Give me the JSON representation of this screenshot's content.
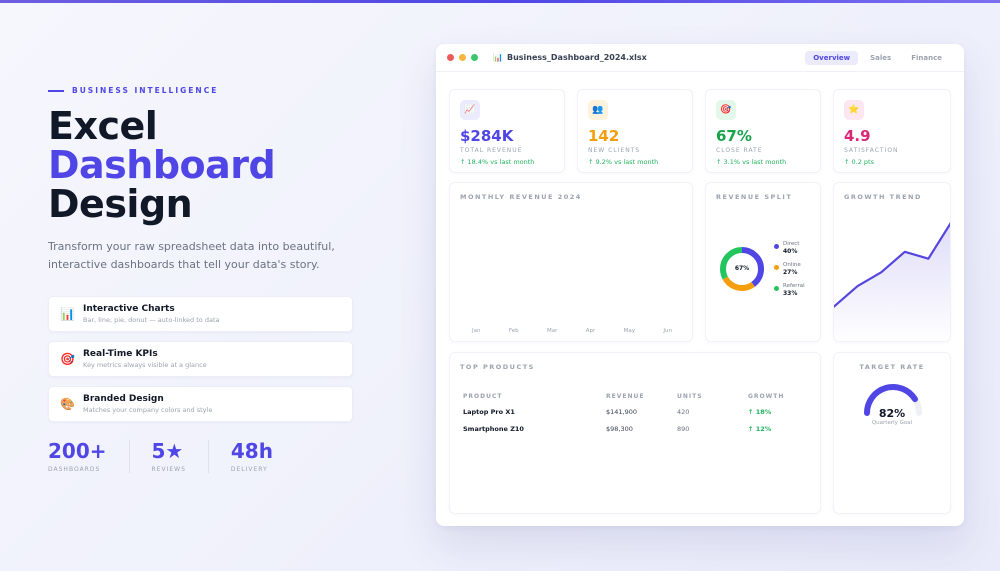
{
  "hero": {
    "eyebrow": "BUSINESS INTELLIGENCE",
    "title_line1": "Excel",
    "title_line2": "Dashboard",
    "title_line3": "Design",
    "subtitle": "Transform your raw spreadsheet data into beautiful, interactive dashboards that tell your data's story.",
    "features": [
      {
        "icon": "bar-chart-icon",
        "glyph": "📊",
        "title": "Interactive Charts",
        "desc": "Bar, line, pie, donut — auto-linked to data"
      },
      {
        "icon": "target-icon",
        "glyph": "🎯",
        "title": "Real-Time KPIs",
        "desc": "Key metrics always visible at a glance"
      },
      {
        "icon": "palette-icon",
        "glyph": "🎨",
        "title": "Branded Design",
        "desc": "Matches your company colors and style"
      }
    ],
    "stats": [
      {
        "value": "200+",
        "label": "DASHBOARDS"
      },
      {
        "value": "5★",
        "label": "REVIEWS"
      },
      {
        "value": "48h",
        "label": "DELIVERY"
      }
    ]
  },
  "window": {
    "file_icon": "spreadsheet-icon",
    "file_glyph": "📊",
    "file_name": "Business_Dashboard_2024.xlsx",
    "tabs": [
      {
        "label": "Overview",
        "active": true
      },
      {
        "label": "Sales",
        "active": false
      },
      {
        "label": "Finance",
        "active": false
      }
    ]
  },
  "kpis": [
    {
      "icon": "trend-up-icon",
      "glyph": "📈",
      "value": "$284K",
      "label": "TOTAL REVENUE",
      "trend": "↑ 18.4% vs last month",
      "color": "#4f46e5",
      "bg": "#eceafd"
    },
    {
      "icon": "people-icon",
      "glyph": "👥",
      "value": "142",
      "label": "NEW CLIENTS",
      "trend": "↑ 9.2% vs last month",
      "color": "#f59e0b",
      "bg": "#fdf3dc"
    },
    {
      "icon": "target-icon",
      "glyph": "🎯",
      "value": "67%",
      "label": "CLOSE RATE",
      "trend": "↑ 3.1% vs last month",
      "color": "#16a34a",
      "bg": "#e3f7ea"
    },
    {
      "icon": "star-icon",
      "glyph": "⭐",
      "value": "4.9",
      "label": "SATISFACTION",
      "trend": "↑ 0.2 pts",
      "color": "#db2777",
      "bg": "#fce7f1"
    }
  ],
  "monthly_revenue": {
    "title": "MONTHLY REVENUE 2024",
    "months": [
      "Jan",
      "Feb",
      "Mar",
      "Apr",
      "May",
      "Jun"
    ]
  },
  "revenue_split": {
    "title": "REVENUE SPLIT",
    "center": "67%",
    "segments": [
      {
        "name": "Direct",
        "pct": "40%",
        "value": 40,
        "color": "#4f46e5"
      },
      {
        "name": "Online",
        "pct": "27%",
        "value": 27,
        "color": "#f59e0b"
      },
      {
        "name": "Referral",
        "pct": "33%",
        "value": 33,
        "color": "#22c55e"
      }
    ]
  },
  "growth_trend": {
    "title": "GROWTH TREND",
    "values": [
      10,
      28,
      40,
      58,
      52,
      85
    ]
  },
  "top_products": {
    "title": "TOP PRODUCTS",
    "columns": [
      "PRODUCT",
      "REVENUE",
      "UNITS",
      "GROWTH"
    ],
    "rows": [
      {
        "product": "Laptop Pro X1",
        "revenue": "$141,900",
        "units": "420",
        "growth": "↑ 18%"
      },
      {
        "product": "Smartphone Z10",
        "revenue": "$98,300",
        "units": "890",
        "growth": "↑ 12%"
      }
    ]
  },
  "target_rate": {
    "title": "TARGET RATE",
    "value": "82%",
    "fraction": 0.82,
    "caption": "Quarterly Goal",
    "color": "#4f46e5"
  }
}
